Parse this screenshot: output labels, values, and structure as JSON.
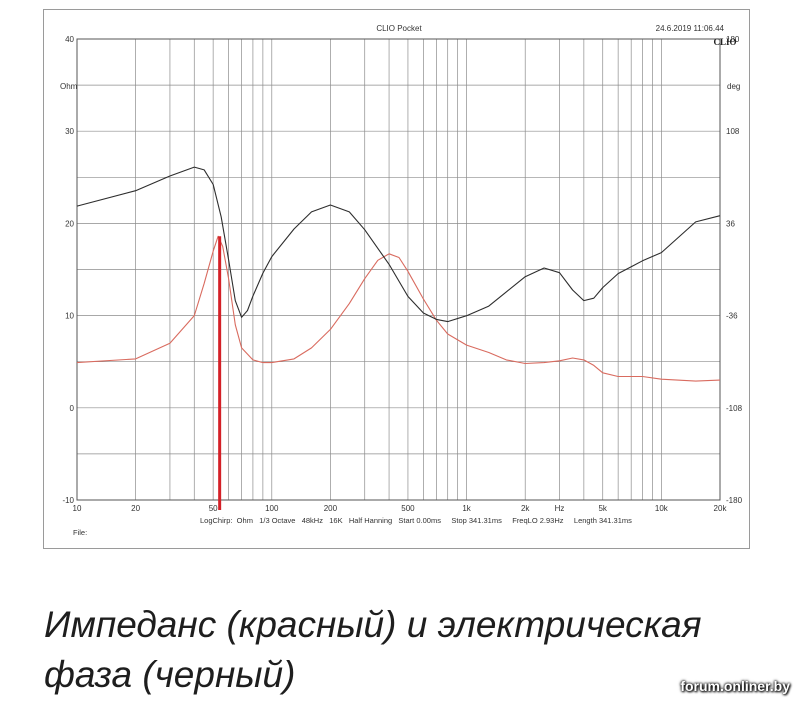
{
  "chart_data": {
    "type": "line",
    "header": {
      "title": "CLIO Pocket",
      "timestamp": "24.6.2019 11:06.44",
      "brand": "CLIO"
    },
    "x_axis": {
      "scale": "log",
      "range": [
        10,
        20000
      ],
      "tick_labels": [
        {
          "value": 10,
          "label": "10"
        },
        {
          "value": 20,
          "label": "20"
        },
        {
          "value": 50,
          "label": "50"
        },
        {
          "value": 100,
          "label": "100"
        },
        {
          "value": 200,
          "label": "200"
        },
        {
          "value": 500,
          "label": "500"
        },
        {
          "value": 1000,
          "label": "1k"
        },
        {
          "value": 2000,
          "label": "2k"
        },
        {
          "value": 3000,
          "label": "Hz"
        },
        {
          "value": 5000,
          "label": "5k"
        },
        {
          "value": 10000,
          "label": "10k"
        },
        {
          "value": 20000,
          "label": "20k"
        }
      ]
    },
    "y_left": {
      "label": "Ohm",
      "range": [
        -10,
        40
      ],
      "tick_labels": [
        "40",
        "30",
        "20",
        "10",
        "0",
        "-10"
      ]
    },
    "y_right": {
      "label": "deg",
      "range": [
        -180,
        180
      ],
      "tick_labels": [
        "180",
        "108",
        "36",
        "-36",
        "-108",
        "-180"
      ]
    },
    "grid": true,
    "series": [
      {
        "color": "#d96b5f",
        "axis": "left",
        "points": [
          [
            10,
            4.9
          ],
          [
            20,
            5.3
          ],
          [
            30,
            7.0
          ],
          [
            40,
            10.0
          ],
          [
            45,
            13.5
          ],
          [
            50,
            17.0
          ],
          [
            53,
            18.6
          ],
          [
            56,
            17.5
          ],
          [
            60,
            14.0
          ],
          [
            65,
            9.0
          ],
          [
            70,
            6.5
          ],
          [
            80,
            5.2
          ],
          [
            90,
            4.9
          ],
          [
            100,
            4.9
          ],
          [
            130,
            5.3
          ],
          [
            160,
            6.5
          ],
          [
            200,
            8.5
          ],
          [
            250,
            11.3
          ],
          [
            300,
            14.0
          ],
          [
            350,
            16.0
          ],
          [
            400,
            16.7
          ],
          [
            450,
            16.3
          ],
          [
            500,
            14.8
          ],
          [
            600,
            11.8
          ],
          [
            700,
            9.5
          ],
          [
            800,
            8.0
          ],
          [
            1000,
            6.8
          ],
          [
            1300,
            6.0
          ],
          [
            1600,
            5.2
          ],
          [
            2000,
            4.8
          ],
          [
            2500,
            4.9
          ],
          [
            3000,
            5.1
          ],
          [
            3500,
            5.4
          ],
          [
            4000,
            5.2
          ],
          [
            4500,
            4.6
          ],
          [
            5000,
            3.8
          ],
          [
            6000,
            3.4
          ],
          [
            8000,
            3.4
          ],
          [
            10000,
            3.1
          ],
          [
            15000,
            2.9
          ],
          [
            20000,
            3.0
          ]
        ]
      },
      {
        "color": "#2d2d2d",
        "axis": "right",
        "points": [
          [
            10,
            49.5
          ],
          [
            20,
            61.5
          ],
          [
            30,
            73.0
          ],
          [
            40,
            80.0
          ],
          [
            45,
            77.8
          ],
          [
            50,
            66.4
          ],
          [
            55,
            41.0
          ],
          [
            60,
            7.6
          ],
          [
            65,
            -24.4
          ],
          [
            70,
            -37.3
          ],
          [
            75,
            -32.0
          ],
          [
            80,
            -20.8
          ],
          [
            90,
            -2.8
          ],
          [
            100,
            10.1
          ],
          [
            130,
            31.6
          ],
          [
            160,
            45.0
          ],
          [
            200,
            50.4
          ],
          [
            250,
            45.0
          ],
          [
            300,
            31.1
          ],
          [
            400,
            4.0
          ],
          [
            500,
            -21.0
          ],
          [
            600,
            -34.0
          ],
          [
            700,
            -39.0
          ],
          [
            800,
            -40.7
          ],
          [
            1000,
            -36.1
          ],
          [
            1300,
            -28.6
          ],
          [
            1600,
            -17.5
          ],
          [
            2000,
            -5.6
          ],
          [
            2500,
            1.2
          ],
          [
            3000,
            -2.5
          ],
          [
            3500,
            -16.0
          ],
          [
            4000,
            -24.3
          ],
          [
            4500,
            -22.4
          ],
          [
            5000,
            -14.1
          ],
          [
            6000,
            -3.2
          ],
          [
            8000,
            6.8
          ],
          [
            10000,
            13.2
          ],
          [
            15000,
            37.2
          ],
          [
            20000,
            42.0
          ]
        ]
      }
    ],
    "marker": {
      "frequency": 54,
      "color": "#d42027"
    },
    "footer": {
      "settings": "LogChirp:  Ohm   1/3 Octave   48kHz   16K   Half Hanning   Start 0.00ms     Stop 341.31ms     FreqLO 2.93Hz     Length 341.31ms",
      "file_label": "File:"
    }
  },
  "caption": "Импеданс (красный) и электрическая фаза (черный)",
  "watermark": "forum.onliner.by"
}
